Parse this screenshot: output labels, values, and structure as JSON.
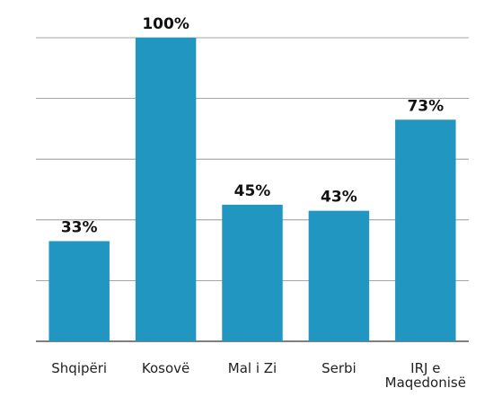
{
  "chart_data": {
    "type": "bar",
    "categories": [
      "Shqipëri",
      "Kosovë",
      "Mal i Zi",
      "Serbi",
      "IRJ e Maqedonisë"
    ],
    "values": [
      33,
      100,
      45,
      43,
      73
    ],
    "value_labels": [
      "33%",
      "100%",
      "45%",
      "43%",
      "73%"
    ],
    "color": "#2196c0",
    "ylim": [
      0,
      100
    ],
    "yticks": [
      0,
      20,
      40,
      60,
      80,
      100
    ],
    "grid": true
  }
}
